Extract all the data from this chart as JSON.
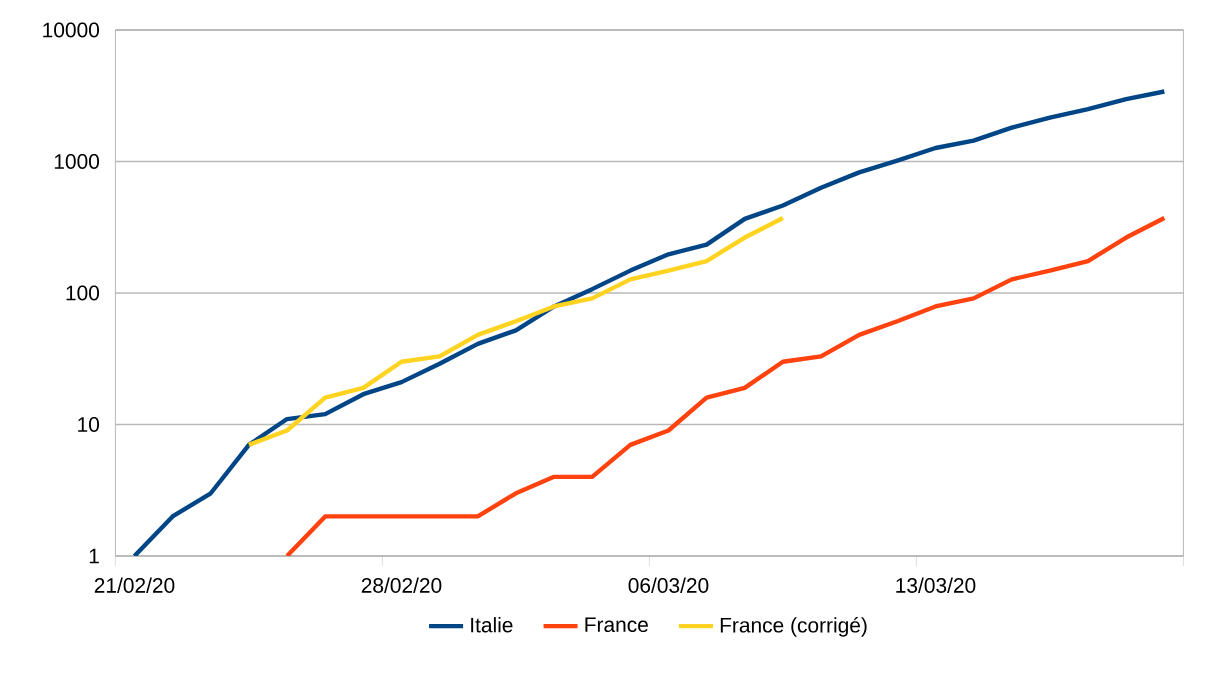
{
  "chart_data": {
    "type": "line",
    "categories": [
      "21/02/20",
      null,
      null,
      null,
      null,
      null,
      null,
      "28/02/20",
      null,
      null,
      null,
      null,
      null,
      null,
      "06/03/20",
      null,
      null,
      null,
      null,
      null,
      null,
      "13/03/20",
      null,
      null,
      null,
      null,
      null,
      null
    ],
    "series": [
      {
        "name": "Italie",
        "color": "#004586",
        "values": [
          1,
          2,
          3,
          7,
          11,
          12,
          17,
          21,
          29,
          41,
          52,
          79,
          107,
          148,
          197,
          233,
          366,
          463,
          631,
          827,
          1016,
          1266,
          1441,
          1809,
          2158,
          2503,
          2978,
          3405
        ]
      },
      {
        "name": "France",
        "color": "#ff420e",
        "values": [
          null,
          null,
          null,
          null,
          1,
          2,
          2,
          2,
          2,
          2,
          3,
          4,
          4,
          7,
          9,
          16,
          19,
          30,
          33,
          48,
          61,
          79,
          91,
          127,
          148,
          175,
          264,
          372
        ]
      },
      {
        "name": "France (corrigé)",
        "color": "#ffd320",
        "values": [
          null,
          null,
          null,
          7,
          9,
          16,
          19,
          30,
          33,
          48,
          61,
          79,
          91,
          127,
          148,
          175,
          264,
          372,
          null,
          null,
          null,
          null,
          null,
          null,
          null,
          null,
          null,
          null
        ]
      }
    ],
    "log": "y",
    "ylim": [
      1,
      10000
    ],
    "yticks": [
      1,
      10,
      100,
      1000,
      10000
    ],
    "grid": "y",
    "legend": "bottom",
    "marker": "none",
    "line_style": "solid"
  }
}
